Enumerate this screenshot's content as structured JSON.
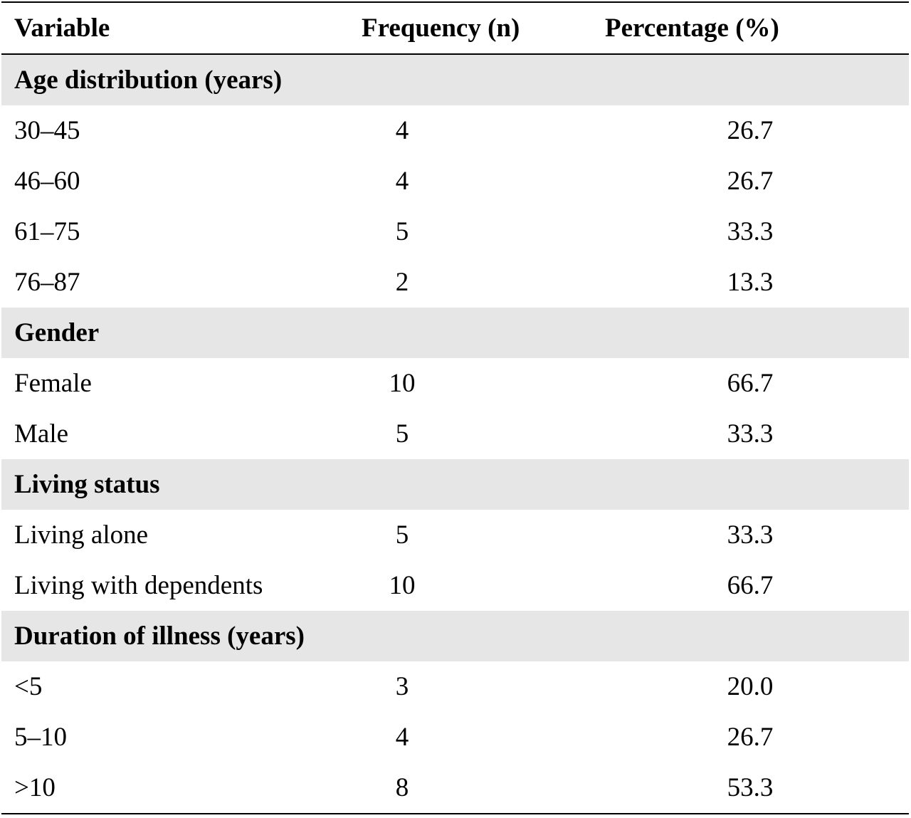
{
  "table": {
    "headers": {
      "variable": "Variable",
      "frequency": "Frequency (n)",
      "percentage": "Percentage (%)"
    },
    "sections": [
      {
        "title": "Age distribution (years)",
        "rows": [
          {
            "label": "30–45",
            "n": "4",
            "pct": "26.7"
          },
          {
            "label": "46–60",
            "n": "4",
            "pct": "26.7"
          },
          {
            "label": "61–75",
            "n": "5",
            "pct": "33.3"
          },
          {
            "label": "76–87",
            "n": "2",
            "pct": "13.3"
          }
        ]
      },
      {
        "title": "Gender",
        "rows": [
          {
            "label": "Female",
            "n": "10",
            "pct": "66.7"
          },
          {
            "label": "Male",
            "n": "5",
            "pct": "33.3"
          }
        ]
      },
      {
        "title": "Living status",
        "rows": [
          {
            "label": "Living alone",
            "n": "5",
            "pct": "33.3"
          },
          {
            "label": "Living with dependents",
            "n": "10",
            "pct": "66.7"
          }
        ]
      },
      {
        "title": "Duration of illness (years)",
        "rows": [
          {
            "label": "<5",
            "n": "3",
            "pct": "20.0"
          },
          {
            "label": "5–10",
            "n": "4",
            "pct": "26.7"
          },
          {
            "label": ">10",
            "n": "8",
            "pct": "53.3"
          }
        ]
      }
    ]
  }
}
